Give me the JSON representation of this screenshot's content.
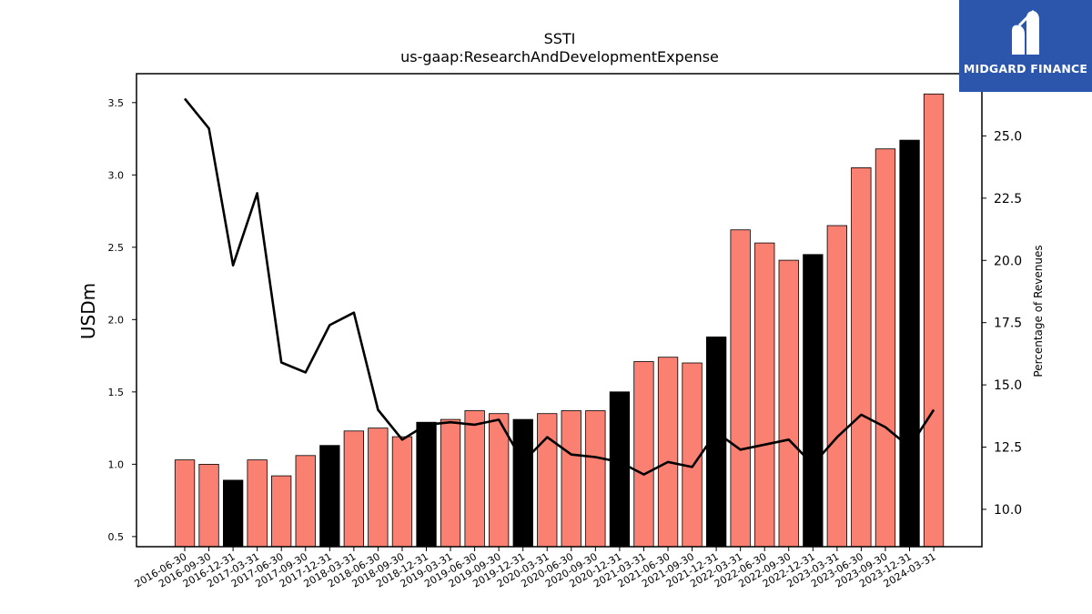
{
  "logo": {
    "text": "MIDGARD FINANCE",
    "color": "#2b56ac"
  },
  "chart_data": {
    "type": "bar",
    "title": "SSTI",
    "subtitle": "us-gaap:ResearchAndDevelopmentExpense",
    "ylabel": "USDm",
    "y2label": "Percentage of Revenues",
    "ylim": [
      0.43,
      3.7
    ],
    "y2lim": [
      8.5,
      27.5
    ],
    "yticks": [
      0.5,
      1.0,
      1.5,
      2.0,
      2.5,
      3.0,
      3.5
    ],
    "y2ticks": [
      10.0,
      12.5,
      15.0,
      17.5,
      20.0,
      22.5,
      25.0
    ],
    "categories": [
      "2016-06-30",
      "2016-09-30",
      "2016-12-31",
      "2017-03-31",
      "2017-06-30",
      "2017-09-30",
      "2017-12-31",
      "2018-03-31",
      "2018-06-30",
      "2018-09-30",
      "2018-12-31",
      "2019-03-31",
      "2019-06-30",
      "2019-09-30",
      "2019-12-31",
      "2020-03-31",
      "2020-06-30",
      "2020-09-30",
      "2020-12-31",
      "2021-03-31",
      "2021-06-30",
      "2021-09-30",
      "2021-12-31",
      "2022-03-31",
      "2022-06-30",
      "2022-09-30",
      "2022-12-31",
      "2023-03-31",
      "2023-06-30",
      "2023-09-30",
      "2023-12-31",
      "2024-03-31"
    ],
    "series": [
      {
        "values": [
          1.03,
          1.0,
          0.89,
          1.03,
          0.92,
          1.06,
          1.13,
          1.23,
          1.25,
          1.19,
          1.29,
          1.31,
          1.37,
          1.35,
          1.31,
          1.35,
          1.37,
          1.37,
          1.5,
          1.71,
          1.74,
          1.7,
          1.88,
          2.62,
          2.53,
          2.41,
          2.45,
          2.65,
          3.05,
          3.18,
          3.24,
          3.56
        ]
      },
      {
        "values": [
          26.5,
          25.3,
          19.8,
          22.7,
          15.9,
          15.5,
          17.4,
          17.9,
          14.0,
          12.8,
          13.4,
          13.5,
          13.4,
          13.6,
          11.9,
          12.9,
          12.2,
          12.1,
          11.9,
          11.4,
          11.9,
          11.7,
          13.1,
          12.4,
          12.6,
          12.8,
          11.8,
          12.9,
          13.8,
          13.3,
          12.5,
          14.0
        ]
      }
    ],
    "colors": {
      "bar": "#fa8072",
      "bar_year_end": "#000000",
      "line": "#000000",
      "edge": "#000000"
    },
    "grid": false,
    "legend": "none"
  }
}
